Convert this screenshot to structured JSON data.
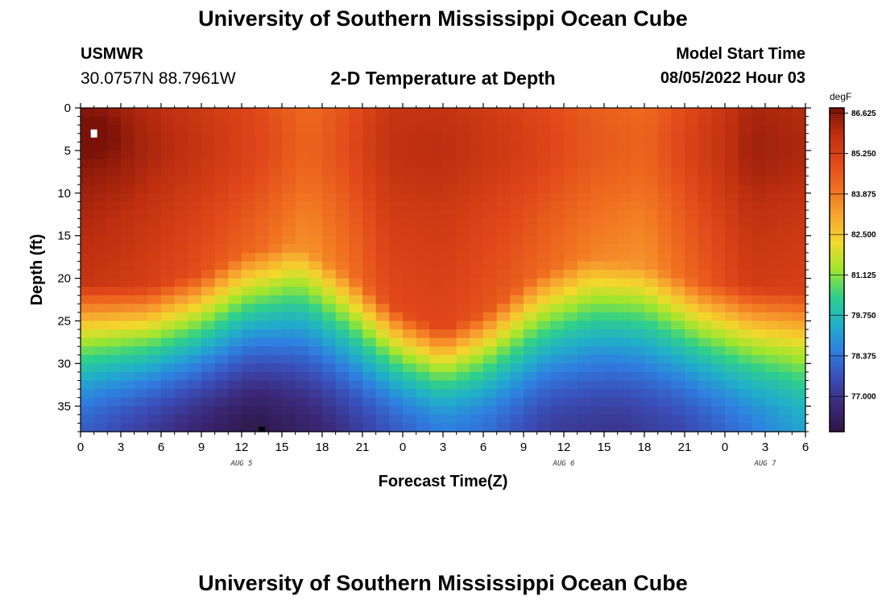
{
  "header": {
    "title": "University of Southern Mississippi Ocean Cube",
    "station": "USMWR",
    "coords": "30.0757N  88.7961W",
    "plot_title": "2-D Temperature at Depth",
    "model_start_label": "Model Start Time",
    "model_start_value": "08/05/2022 Hour 03"
  },
  "footer": {
    "title": "University of Southern Mississippi Ocean Cube"
  },
  "chart_data": {
    "type": "heatmap",
    "title": "2-D Temperature at Depth",
    "xlabel": "Forecast Time(Z)",
    "ylabel": "Depth (ft)",
    "x_ticks": [
      "0",
      "3",
      "6",
      "9",
      "12",
      "15",
      "18",
      "21",
      "0",
      "3",
      "6",
      "9",
      "12",
      "15",
      "18",
      "21",
      "0",
      "3",
      "6"
    ],
    "x_range_hours": [
      0,
      54
    ],
    "date_labels": [
      {
        "label": "AUG 5",
        "hour": 12
      },
      {
        "label": "AUG 6",
        "hour": 36
      },
      {
        "label": "AUG 7",
        "hour": 51
      }
    ],
    "y_ticks": [
      0,
      5,
      10,
      15,
      20,
      25,
      30,
      35
    ],
    "y_range_ft": [
      0,
      38
    ],
    "colorbar": {
      "unit": "degF",
      "min": 75.8,
      "max": 86.8,
      "ticks": [
        "86.625",
        "85.250",
        "83.875",
        "82.500",
        "81.125",
        "79.750",
        "78.375",
        "77.000"
      ],
      "tick_values": [
        86.625,
        85.25,
        83.875,
        82.5,
        81.125,
        79.75,
        78.375,
        77.0
      ],
      "colors": [
        "#2d1745",
        "#3b2a7a",
        "#3a4fb8",
        "#2f7fe0",
        "#20b0c8",
        "#2fd08a",
        "#9ee62e",
        "#f2d92c",
        "#f7a530",
        "#f07020",
        "#e0481a",
        "#c03010",
        "#7a1208"
      ]
    },
    "max_marker": {
      "hour": 1,
      "depth_ft": 3
    },
    "min_marker": {
      "hour": 13.5,
      "depth_ft": 38
    },
    "field": {
      "grid_hours_step": 1,
      "grid_depth_step_ft": 1,
      "mixed_layer_depth_ft": [
        {
          "hour": 0,
          "depth": 20.5
        },
        {
          "hour": 5,
          "depth": 21.0
        },
        {
          "hour": 9,
          "depth": 19.5
        },
        {
          "hour": 12,
          "depth": 17.0
        },
        {
          "hour": 16,
          "depth": 16.0
        },
        {
          "hour": 20,
          "depth": 19.5
        },
        {
          "hour": 24,
          "depth": 24.0
        },
        {
          "hour": 27,
          "depth": 26.0
        },
        {
          "hour": 30,
          "depth": 24.0
        },
        {
          "hour": 34,
          "depth": 19.5
        },
        {
          "hour": 38,
          "depth": 17.5
        },
        {
          "hour": 42,
          "depth": 18.5
        },
        {
          "hour": 46,
          "depth": 20.5
        },
        {
          "hour": 54,
          "depth": 21.5
        }
      ],
      "surface_temp_degF": [
        {
          "hour": 0,
          "temp": 86.3
        },
        {
          "hour": 3,
          "temp": 86.1
        },
        {
          "hour": 8,
          "temp": 85.5
        },
        {
          "hour": 13,
          "temp": 84.8
        },
        {
          "hour": 17,
          "temp": 84.0
        },
        {
          "hour": 20,
          "temp": 84.6
        },
        {
          "hour": 23,
          "temp": 85.5
        },
        {
          "hour": 27,
          "temp": 85.6
        },
        {
          "hour": 33,
          "temp": 85.0
        },
        {
          "hour": 38,
          "temp": 84.3
        },
        {
          "hour": 42,
          "temp": 84.0
        },
        {
          "hour": 46,
          "temp": 85.0
        },
        {
          "hour": 50,
          "temp": 86.0
        },
        {
          "hour": 54,
          "temp": 85.8
        }
      ],
      "bottom_temp_degF": [
        {
          "hour": 0,
          "temp": 78.0
        },
        {
          "hour": 5,
          "temp": 77.2
        },
        {
          "hour": 9,
          "temp": 76.5
        },
        {
          "hour": 13,
          "temp": 75.9
        },
        {
          "hour": 18,
          "temp": 76.6
        },
        {
          "hour": 24,
          "temp": 78.0
        },
        {
          "hour": 27,
          "temp": 78.6
        },
        {
          "hour": 30,
          "temp": 78.3
        },
        {
          "hour": 35,
          "temp": 77.2
        },
        {
          "hour": 40,
          "temp": 77.0
        },
        {
          "hour": 45,
          "temp": 77.5
        },
        {
          "hour": 54,
          "temp": 79.3
        }
      ]
    }
  }
}
